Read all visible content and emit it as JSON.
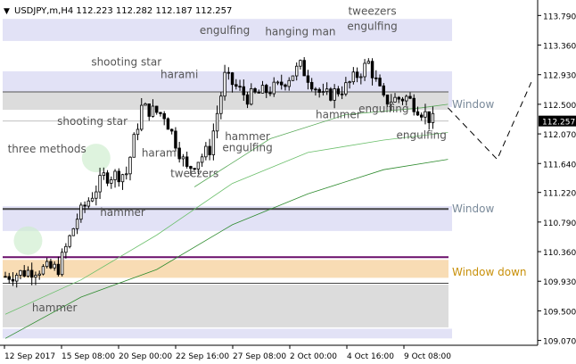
{
  "window": {
    "symbol_line": "USDJPY,m,H4  112.223 112.282 112.187 112.257",
    "menu_icon": "triangle-down-icon"
  },
  "chart_data": {
    "type": "candlestick",
    "symbol": "USDJPY,m",
    "timeframe": "H4",
    "ohlc_header": {
      "open": 112.223,
      "high": 112.282,
      "low": 112.187,
      "close": 112.257
    },
    "current_price": 112.257,
    "y_ticks": [
      113.79,
      113.36,
      112.93,
      112.5,
      112.07,
      111.64,
      111.22,
      110.79,
      110.36,
      109.93,
      109.5,
      109.07
    ],
    "y_tick_labels": [
      "113.790",
      "113.360",
      "112.930",
      "112.500",
      "112.070",
      "111.640",
      "111.220",
      "110.790",
      "110.360",
      "109.930",
      "109.500",
      "109.070"
    ],
    "x_labels": [
      "12 Sep 2017",
      "15 Sep 08:00",
      "20 Sep 00:00",
      "22 Sep 16:00",
      "27 Sep 08:00",
      "2 Oct 00:00",
      "4 Oct 16:00",
      "9 Oct 08:00"
    ],
    "ylim": [
      109.0,
      113.95
    ],
    "zones": [
      {
        "name": "blue-band",
        "from": 113.42,
        "to": 113.74,
        "color": "#e2e2f6"
      },
      {
        "name": "blue-band",
        "from": 112.46,
        "to": 112.98,
        "color": "#e2e2f6"
      },
      {
        "name": "window-zone",
        "from": 112.42,
        "to": 112.68,
        "color": "#dcdcdc"
      },
      {
        "name": "blue-band",
        "from": 110.66,
        "to": 111.02,
        "color": "#e2e2f6"
      },
      {
        "name": "window-down-zone",
        "from": 109.98,
        "to": 110.24,
        "color": "#f8dcb4"
      },
      {
        "name": "lower-gray-zone",
        "from": 109.26,
        "to": 109.88,
        "color": "#dcdcdc"
      },
      {
        "name": "blue-band",
        "from": 109.1,
        "to": 109.24,
        "color": "#e2e2f6"
      }
    ],
    "levels": [
      {
        "price": 112.68,
        "color": "#555555",
        "width": 1
      },
      {
        "price": 112.257,
        "color": "#c0c0c0",
        "width": 1
      },
      {
        "price": 110.98,
        "color": "#444444",
        "width": 2
      },
      {
        "price": 110.28,
        "color": "#6a0f6a",
        "width": 2
      },
      {
        "price": 109.9,
        "color": "#444444",
        "width": 1
      }
    ],
    "level_labels": [
      {
        "text": "Window",
        "price": 112.5,
        "color": "#7a8a9a"
      },
      {
        "text": "Window",
        "price": 110.98,
        "color": "#7a8a9a"
      },
      {
        "text": "Window down",
        "price": 110.06,
        "color": "#c8900a"
      }
    ],
    "patterns": [
      {
        "text": "engulfing",
        "bar": 58,
        "price": 113.52
      },
      {
        "text": "hanging man",
        "bar": 78,
        "price": 113.5
      },
      {
        "text": "tweezers",
        "bar": 97,
        "price": 113.8
      },
      {
        "text": "engulfing",
        "bar": 97,
        "price": 113.58
      },
      {
        "text": "shooting star",
        "bar": 32,
        "price": 113.06
      },
      {
        "text": "harami",
        "bar": 46,
        "price": 112.88
      },
      {
        "text": "shooting star",
        "bar": 23,
        "price": 112.2
      },
      {
        "text": "Window",
        "bar": 0,
        "price": 0
      },
      {
        "text": "hammer",
        "bar": 88,
        "price": 112.3
      },
      {
        "text": "engulfing",
        "bar": 100,
        "price": 112.38
      },
      {
        "text": "hammer",
        "bar": 64,
        "price": 111.98
      },
      {
        "text": "engulfing",
        "bar": 64,
        "price": 111.82
      },
      {
        "text": "three methods",
        "bar": 11,
        "price": 111.8
      },
      {
        "text": "harami",
        "bar": 41,
        "price": 111.74
      },
      {
        "text": "engulfing",
        "bar": 110,
        "price": 112.0
      },
      {
        "text": "tweezers",
        "bar": 50,
        "price": 111.44
      },
      {
        "text": "hammer",
        "bar": 31,
        "price": 110.88
      },
      {
        "text": "hammer",
        "bar": 13,
        "price": 109.49
      }
    ],
    "series": [
      {
        "name": "close",
        "x_bars": [
          0,
          8,
          14,
          19,
          26,
          32,
          36,
          42,
          48,
          54,
          58,
          64,
          72,
          78,
          84,
          90,
          96,
          100,
          106,
          113
        ],
        "values": [
          110.0,
          110.1,
          110.12,
          110.85,
          111.45,
          111.5,
          112.45,
          112.35,
          111.55,
          111.85,
          112.9,
          112.6,
          112.75,
          113.05,
          112.6,
          112.75,
          113.1,
          112.55,
          112.6,
          112.257
        ]
      },
      {
        "name": "ma-fast",
        "x_bars": [
          0,
          20,
          40,
          60,
          80,
          100,
          117
        ],
        "values": [
          109.45,
          109.95,
          110.6,
          111.35,
          111.8,
          111.98,
          112.09
        ]
      },
      {
        "name": "ma-slow",
        "x_bars": [
          0,
          20,
          40,
          60,
          80,
          100,
          117
        ],
        "values": [
          109.1,
          109.7,
          110.1,
          110.75,
          111.2,
          111.55,
          111.7
        ]
      },
      {
        "name": "ma-mid",
        "x_bars": [
          50,
          70,
          90,
          110,
          117
        ],
        "values": [
          111.3,
          112.0,
          112.35,
          112.45,
          112.5
        ]
      }
    ],
    "projection": [
      {
        "bar": 117,
        "price": 112.45
      },
      {
        "bar": 130,
        "price": 111.7
      },
      {
        "bar": 139,
        "price": 112.82
      }
    ],
    "highlight_circles": [
      {
        "bar": 6,
        "price": 110.52
      },
      {
        "bar": 24,
        "price": 111.72
      }
    ]
  }
}
